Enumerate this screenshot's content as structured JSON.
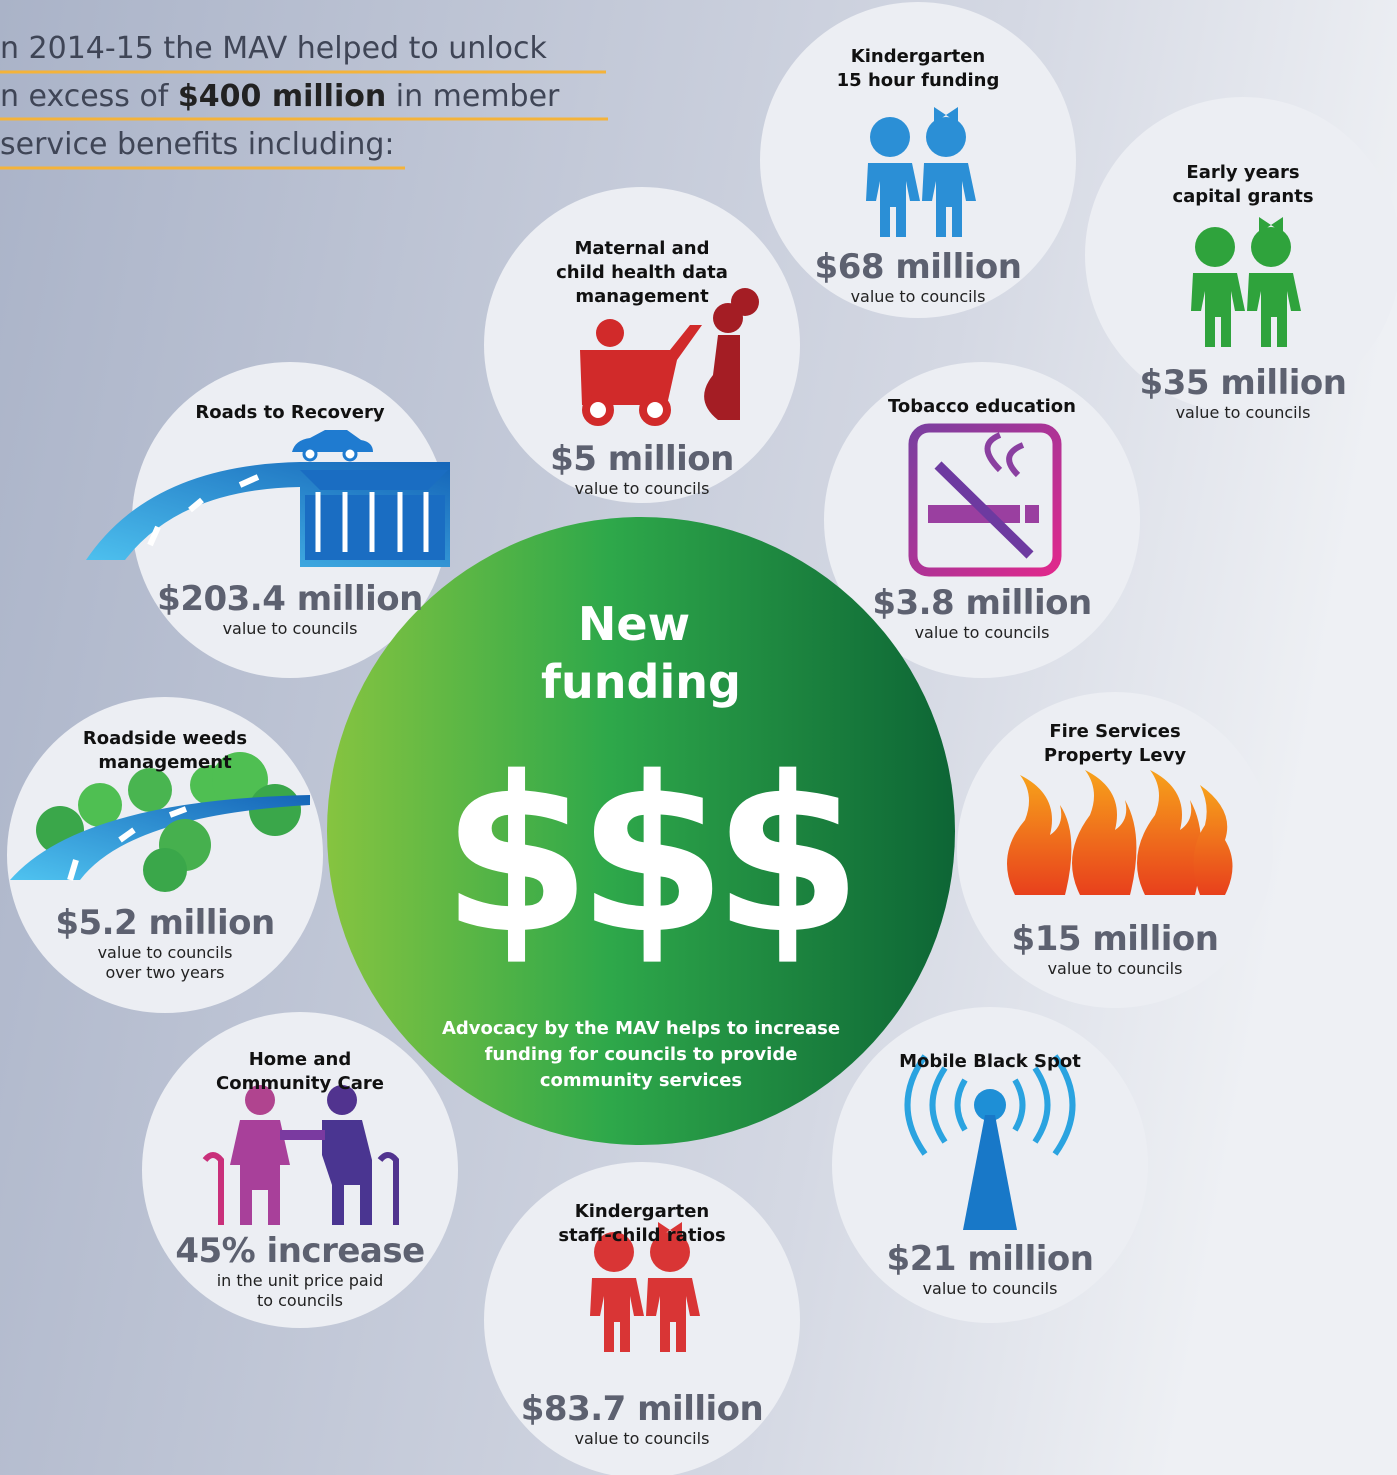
{
  "intro": {
    "line1": "n 2014-15 the MAV helped to unlock",
    "line2": {
      "before": "n excess of ",
      "highlight": "$400 million",
      "after": " in member"
    },
    "line3": "service benefits including:"
  },
  "center": {
    "title": [
      "New",
      "funding"
    ],
    "symbol": "$$$",
    "description": [
      "Advocacy by the MAV helps to increase",
      "funding for councils to provide",
      "community services"
    ]
  },
  "items": [
    {
      "title": [
        "Kindergarten",
        "15 hour funding"
      ],
      "amount": "$68 million",
      "note": [
        "value to councils"
      ]
    },
    {
      "title": [
        "Early years",
        "capital grants"
      ],
      "amount": "$35 million",
      "note": [
        "value to councils"
      ]
    },
    {
      "title": [
        "Maternal and",
        "child health data",
        "management"
      ],
      "amount": "$5 million",
      "note": [
        "value to councils"
      ]
    },
    {
      "title": [
        "Roads to Recovery"
      ],
      "amount": "$203.4 million",
      "note": [
        "value to councils"
      ]
    },
    {
      "title": [
        "Tobacco education"
      ],
      "amount": "$3.8 million",
      "note": [
        "value to councils"
      ]
    },
    {
      "title": [
        "Roadside weeds",
        "management"
      ],
      "amount": "$5.2 million",
      "note": [
        "value to councils",
        "over two years"
      ]
    },
    {
      "title": [
        "Fire Services",
        "Property Levy"
      ],
      "amount": "$15 million",
      "note": [
        "value to councils"
      ]
    },
    {
      "title": [
        "Home and",
        "Community Care"
      ],
      "amount": "45% increase",
      "note": [
        "in the unit price paid",
        "to councils"
      ]
    },
    {
      "title": [
        "Mobile Black Spot"
      ],
      "amount": "$21 million",
      "note": [
        "value to councils"
      ]
    },
    {
      "title": [
        "Kindergarten",
        "staff-child ratios"
      ],
      "amount": "$83.7 million",
      "note": [
        "value to councils"
      ]
    }
  ]
}
